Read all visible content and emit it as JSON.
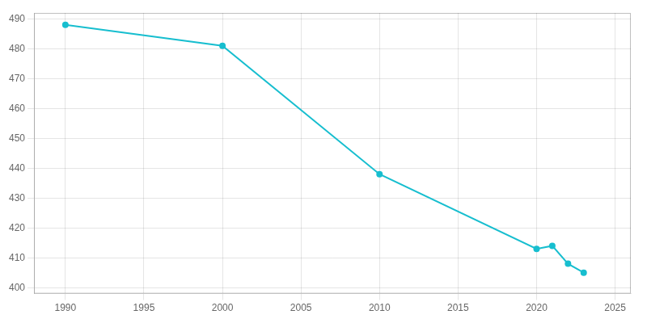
{
  "chart_data": {
    "type": "line",
    "x": [
      1990,
      2000,
      2010,
      2020,
      2021,
      2022,
      2023
    ],
    "values": [
      488,
      481,
      438,
      413,
      414,
      408,
      405
    ],
    "color": "#17becf",
    "marker": "circle",
    "xlim": [
      1988,
      2026
    ],
    "xticks": [
      1990,
      1995,
      2000,
      2005,
      2010,
      2015,
      2020,
      2025
    ],
    "ylim": [
      398,
      492
    ],
    "yticks": [
      400,
      410,
      420,
      430,
      440,
      450,
      460,
      470,
      480,
      490
    ],
    "grid": true
  }
}
